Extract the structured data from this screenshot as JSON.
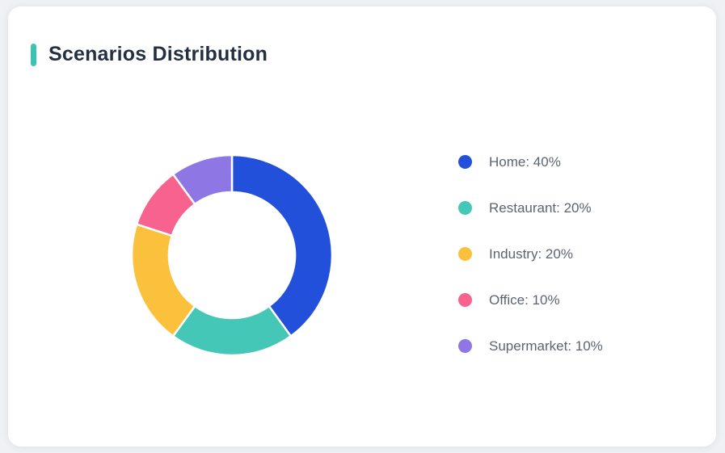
{
  "card": {
    "title": "Scenarios Distribution"
  },
  "theme": {
    "page_bg": "#eff1f4",
    "card_bg": "#ffffff",
    "accent_bar_color": "#38c3b3",
    "title_color": "#243041",
    "legend_text_color": "#5d6470",
    "slice_separator_color": "#ffffff"
  },
  "chart_data": {
    "type": "pie",
    "subtype": "donut",
    "title": "Scenarios Distribution",
    "labels": [
      "Home",
      "Restaurant",
      "Industry",
      "Office",
      "Supermarket"
    ],
    "values": [
      40,
      20,
      20,
      10,
      10
    ],
    "unit": "%",
    "colors": [
      "#2350da",
      "#45c7b7",
      "#fcc13c",
      "#f7628e",
      "#8e77e4"
    ],
    "start_angle": "top",
    "direction": "clockwise",
    "inner_radius_ratio": 0.63,
    "legend_position": "right",
    "legend_entries": [
      "Home: 40%",
      "Restaurant: 20%",
      "Industry: 20%",
      "Office: 10%",
      "Supermarket: 10%"
    ]
  }
}
